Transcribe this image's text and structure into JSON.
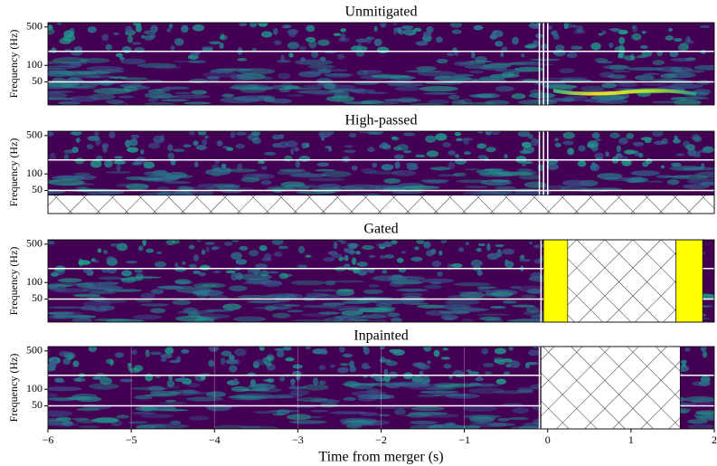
{
  "chart_data": [
    {
      "type": "spectrogram",
      "title": "Unmitigated",
      "ylabel": "Frequency (Hz)",
      "log_y": true,
      "xlim": [
        -6,
        2
      ],
      "ylim": [
        19,
        600
      ],
      "yticks": [
        50,
        100,
        500
      ],
      "hlines": [
        180,
        50
      ],
      "vlines": [
        -0.1,
        -0.05,
        0
      ],
      "regions": []
    },
    {
      "type": "spectrogram",
      "title": "High-passed",
      "ylabel": "Frequency (Hz)",
      "log_y": true,
      "xlim": [
        -6,
        2
      ],
      "ylim": [
        19,
        600
      ],
      "yticks": [
        50,
        100,
        500
      ],
      "hlines": [
        180,
        50
      ],
      "vlines": [
        -0.1,
        -0.05,
        0
      ],
      "regions": [
        {
          "x": [
            -6,
            2
          ],
          "y": [
            19,
            41
          ],
          "fill": "hatch"
        }
      ]
    },
    {
      "type": "spectrogram",
      "title": "Gated",
      "ylabel": "Frequency (Hz)",
      "log_y": true,
      "xlim": [
        -6,
        2
      ],
      "ylim": [
        19,
        600
      ],
      "yticks": [
        50,
        100,
        500
      ],
      "hlines": [
        180,
        50
      ],
      "vlines": [
        -0.08
      ],
      "regions": [
        {
          "x": [
            -0.05,
            0.24
          ],
          "y": [
            19,
            600
          ],
          "fill": "#ffff00"
        },
        {
          "x": [
            0.24,
            1.54
          ],
          "y": [
            19,
            600
          ],
          "fill": "hatch"
        },
        {
          "x": [
            1.54,
            1.86
          ],
          "y": [
            19,
            600
          ],
          "fill": "#ffff00"
        }
      ]
    },
    {
      "type": "spectrogram",
      "title": "Inpainted",
      "ylabel": "Frequency (Hz)",
      "xlabel": "Time from merger (s)",
      "log_y": true,
      "grid": true,
      "xlim": [
        -6,
        2
      ],
      "ylim": [
        19,
        600
      ],
      "yticks": [
        50,
        100,
        500
      ],
      "xticks": [
        {
          "value": -6,
          "label": "−6"
        },
        {
          "value": -5,
          "label": "−5"
        },
        {
          "value": -4,
          "label": "−4"
        },
        {
          "value": -3,
          "label": "−3"
        },
        {
          "value": -2,
          "label": "−2"
        },
        {
          "value": -1,
          "label": "−1"
        },
        0,
        1,
        2
      ],
      "hlines": [
        180,
        50
      ],
      "vlines": [
        -0.1
      ],
      "regions": [
        {
          "x": [
            -0.08,
            1.59
          ],
          "y": [
            19,
            600
          ],
          "fill": "hatch"
        }
      ]
    }
  ]
}
